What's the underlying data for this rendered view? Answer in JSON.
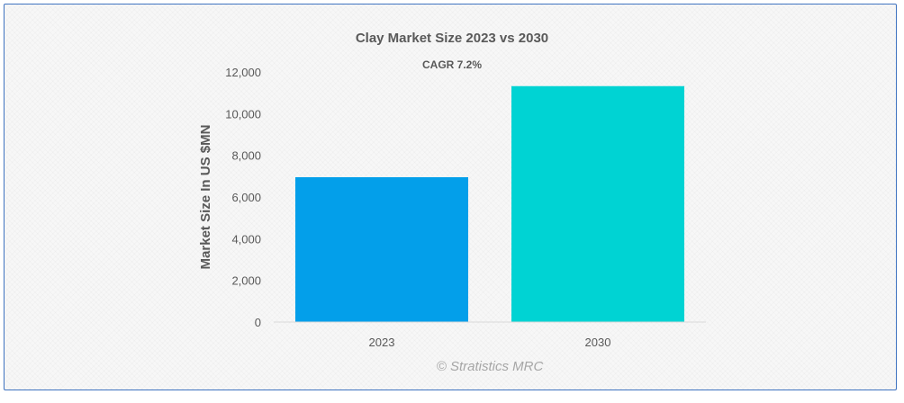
{
  "chart_data": {
    "type": "bar",
    "title": "Clay Market Size 2023 vs 2030",
    "subtitle": "CAGR 7.2%",
    "categories": [
      "2023",
      "2030"
    ],
    "values": [
      6950,
      11320
    ],
    "colors": [
      "#039fea",
      "#00d3d3"
    ],
    "ylabel": "Market Size In US $MN",
    "xlabel": "",
    "ylim": [
      0,
      12000
    ],
    "yticks": [
      0,
      2000,
      4000,
      6000,
      8000,
      10000,
      12000
    ],
    "ytick_labels": [
      "0",
      "2,000",
      "4,000",
      "6,000",
      "8,000",
      "10,000",
      "12,000"
    ],
    "grid": false,
    "legend": "none"
  },
  "watermark": "© Stratistics MRC"
}
